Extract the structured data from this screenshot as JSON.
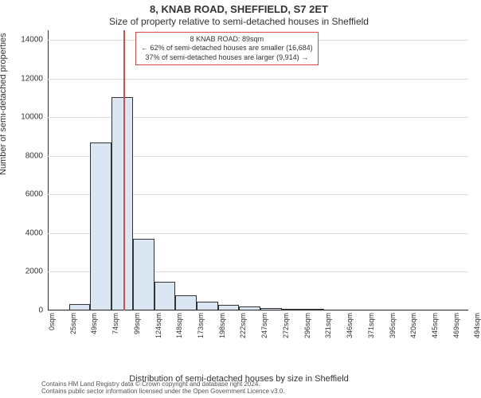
{
  "title_main": "8, KNAB ROAD, SHEFFIELD, S7 2ET",
  "title_sub": "Size of property relative to semi-detached houses in Sheffield",
  "ylabel": "Number of semi-detached properties",
  "xlabel": "Distribution of semi-detached houses by size in Sheffield",
  "footer_line1": "Contains HM Land Registry data © Crown copyright and database right 2024.",
  "footer_line2": "Contains public sector information licensed under the Open Government Licence v3.0.",
  "chart": {
    "type": "histogram",
    "bar_fill": "#dbe6f3",
    "bar_border": "#333333",
    "grid_color": "#dddddd",
    "background": "#ffffff",
    "marker_color": "#d94a4a",
    "yticks": [
      0,
      2000,
      4000,
      6000,
      8000,
      10000,
      12000,
      14000
    ],
    "ymax": 14500,
    "xticks": [
      "0sqm",
      "25sqm",
      "49sqm",
      "74sqm",
      "99sqm",
      "124sqm",
      "148sqm",
      "173sqm",
      "198sqm",
      "222sqm",
      "247sqm",
      "272sqm",
      "296sqm",
      "321sqm",
      "346sqm",
      "371sqm",
      "395sqm",
      "420sqm",
      "445sqm",
      "469sqm",
      "494sqm"
    ],
    "xmax": 494,
    "bin_width": 25,
    "values": [
      0,
      350,
      8700,
      11050,
      3700,
      1500,
      800,
      450,
      300,
      200,
      120,
      80,
      70,
      0,
      0,
      0,
      0,
      0,
      0,
      0
    ],
    "marker_at": 89,
    "marker_label": "89sqm"
  },
  "callout": {
    "title": "8 KNAB ROAD: 89sqm",
    "line1": "← 62% of semi-detached houses are smaller (16,684)",
    "line2": "37% of semi-detached houses are larger (9,914) →",
    "border_color": "#d94a4a",
    "bg": "#ffffff"
  }
}
